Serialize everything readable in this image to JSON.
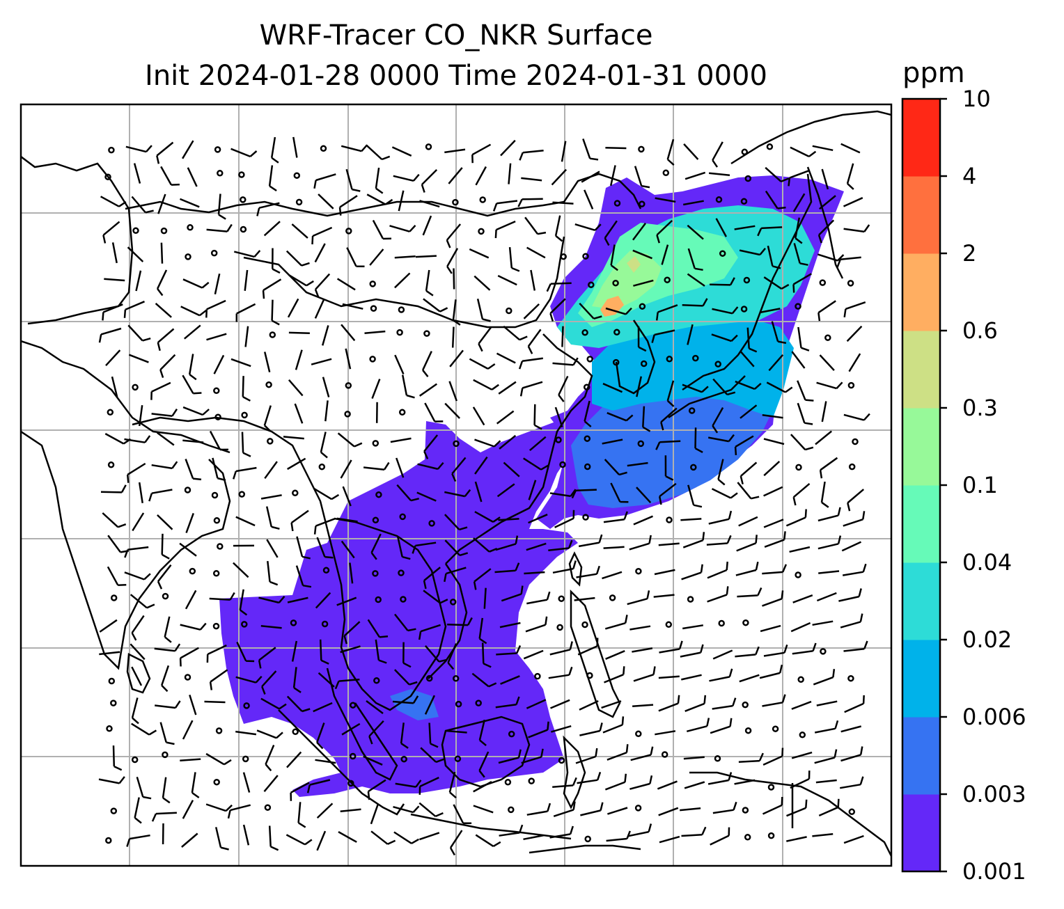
{
  "title": {
    "line1": "WRF-Tracer CO_NKR Surface",
    "line2": "Init 2024-01-28 0000 Time 2024-01-31 0000"
  },
  "colorbar": {
    "unit": "ppm",
    "ticks": [
      "0.001",
      "0.003",
      "0.006",
      "0.02",
      "0.04",
      "0.1",
      "0.3",
      "0.6",
      "2",
      "4",
      "10"
    ],
    "colors": [
      "#6428f8",
      "#3673f2",
      "#00b2ea",
      "#2ddcd7",
      "#66fab8",
      "#97f999",
      "#cde085",
      "#ffae61",
      "#ff703e",
      "#ff2816"
    ]
  },
  "map": {
    "grid": true,
    "wind_barbs": true,
    "coastlines": true
  }
}
